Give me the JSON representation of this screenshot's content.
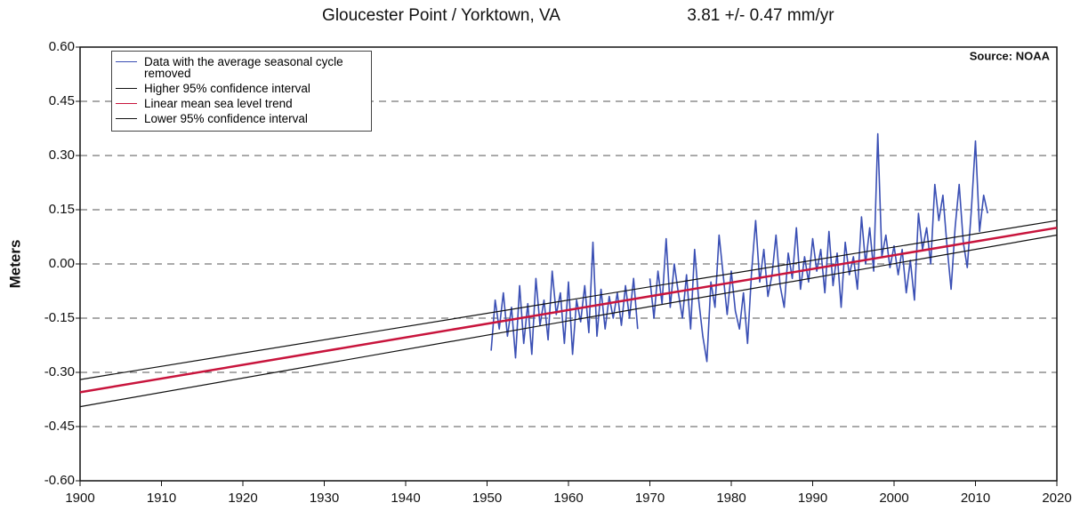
{
  "chart_data": {
    "type": "line",
    "title": "Gloucester Point / Yorktown, VA",
    "trend_label": "3.81 +/- 0.47 mm/yr",
    "annotation": "Source: NOAA",
    "y_label": "Meters",
    "xlim": [
      1900,
      2020
    ],
    "xticks": [
      1900,
      1910,
      1920,
      1930,
      1940,
      1950,
      1960,
      1970,
      1980,
      1990,
      2000,
      2010,
      2020
    ],
    "ylim": [
      -0.6,
      0.6
    ],
    "yticks": [
      {
        "value": 0.6,
        "label": "0.60"
      },
      0.45,
      {
        "value": 0.3,
        "label": "0.30"
      },
      0.15,
      {
        "value": 0,
        "label": "0.00"
      },
      -0.15,
      {
        "value": -0.3,
        "label": "-0.30"
      },
      -0.45,
      {
        "value": -0.6,
        "label": "-0.60"
      }
    ],
    "grid": true,
    "legend": "upper left",
    "series": [
      {
        "name": "Data with the average seasonal cycle removed",
        "color": "#3a4fb4",
        "x": [
          1950.5,
          1951,
          1951.5,
          1952,
          1952.5,
          1953,
          1953.5,
          1954,
          1954.5,
          1955,
          1955.5,
          1956,
          1956.5,
          1957,
          1957.5,
          1958,
          1958.5,
          1959,
          1959.5,
          1960,
          1960.5,
          1961,
          1961.5,
          1962,
          1962.5,
          1963,
          1963.5,
          1964,
          1964.5,
          1965,
          1965.5,
          1966,
          1966.5,
          1967,
          1967.5,
          1968,
          1968.5,
          1969,
          1969.5,
          1970,
          1970.5,
          1971,
          1971.5,
          1972,
          1972.5,
          1973,
          1973.5,
          1974,
          1974.5,
          1975,
          1975.5,
          1976,
          1976.5,
          1977,
          1977.5,
          1978,
          1978.5,
          1979,
          1979.5,
          1980,
          1980.5,
          1981,
          1981.5,
          1982,
          1982.5,
          1983,
          1983.5,
          1984,
          1984.5,
          1985,
          1985.5,
          1986,
          1986.5,
          1987,
          1987.5,
          1988,
          1988.5,
          1989,
          1989.5,
          1990,
          1990.5,
          1991,
          1991.5,
          1992,
          1992.5,
          1993,
          1993.5,
          1994,
          1994.5,
          1995,
          1995.5,
          1996,
          1996.5,
          1997,
          1997.5,
          1998,
          1998.5,
          1999,
          1999.5,
          2000,
          2000.5,
          2001,
          2001.5,
          2002,
          2002.5,
          2003,
          2003.5,
          2004,
          2004.5,
          2005,
          2005.5,
          2006,
          2006.5,
          2007,
          2007.5,
          2008,
          2008.5,
          2009,
          2009.5,
          2010,
          2010.5,
          2011,
          2011.5
        ],
        "values": [
          -0.24,
          -0.1,
          -0.18,
          -0.08,
          -0.2,
          -0.12,
          -0.26,
          -0.06,
          -0.22,
          -0.11,
          -0.25,
          -0.04,
          -0.17,
          -0.1,
          -0.21,
          -0.02,
          -0.14,
          -0.08,
          -0.22,
          -0.05,
          -0.25,
          -0.1,
          -0.16,
          -0.06,
          -0.19,
          0.06,
          -0.2,
          -0.07,
          -0.18,
          -0.09,
          -0.15,
          -0.08,
          -0.17,
          -0.06,
          -0.15,
          -0.04,
          -0.18,
          null,
          null,
          -0.04,
          -0.15,
          -0.02,
          -0.11,
          0.07,
          -0.12,
          0.0,
          -0.08,
          -0.15,
          -0.03,
          -0.18,
          0.04,
          -0.1,
          -0.2,
          -0.27,
          -0.05,
          -0.12,
          0.08,
          -0.03,
          -0.14,
          -0.02,
          -0.13,
          -0.18,
          -0.08,
          -0.22,
          -0.02,
          0.12,
          -0.05,
          0.04,
          -0.09,
          -0.03,
          0.08,
          -0.06,
          -0.12,
          0.03,
          -0.04,
          0.1,
          -0.07,
          0.02,
          -0.05,
          0.07,
          -0.02,
          0.04,
          -0.08,
          0.09,
          -0.06,
          0.03,
          -0.12,
          0.06,
          -0.03,
          0.02,
          -0.07,
          0.13,
          0.0,
          0.1,
          -0.02,
          0.36,
          0.02,
          0.08,
          -0.01,
          0.05,
          -0.03,
          0.04,
          -0.08,
          0.01,
          -0.1,
          0.14,
          0.04,
          0.1,
          0.0,
          0.22,
          0.12,
          0.19,
          0.05,
          -0.07,
          0.1,
          0.22,
          0.06,
          -0.01,
          0.15,
          0.34,
          0.09,
          0.19,
          0.14
        ]
      },
      {
        "name": "Higher 95% confidence interval",
        "color": "#111111",
        "x": [
          1900,
          2020
        ],
        "values": [
          -0.32,
          0.12
        ]
      },
      {
        "name": "Linear mean sea level trend",
        "color": "#c8143c",
        "x": [
          1900,
          2020
        ],
        "values": [
          -0.355,
          0.1
        ]
      },
      {
        "name": "Lower 95% confidence interval",
        "color": "#111111",
        "x": [
          1900,
          2020
        ],
        "values": [
          -0.395,
          0.08
        ]
      }
    ]
  }
}
